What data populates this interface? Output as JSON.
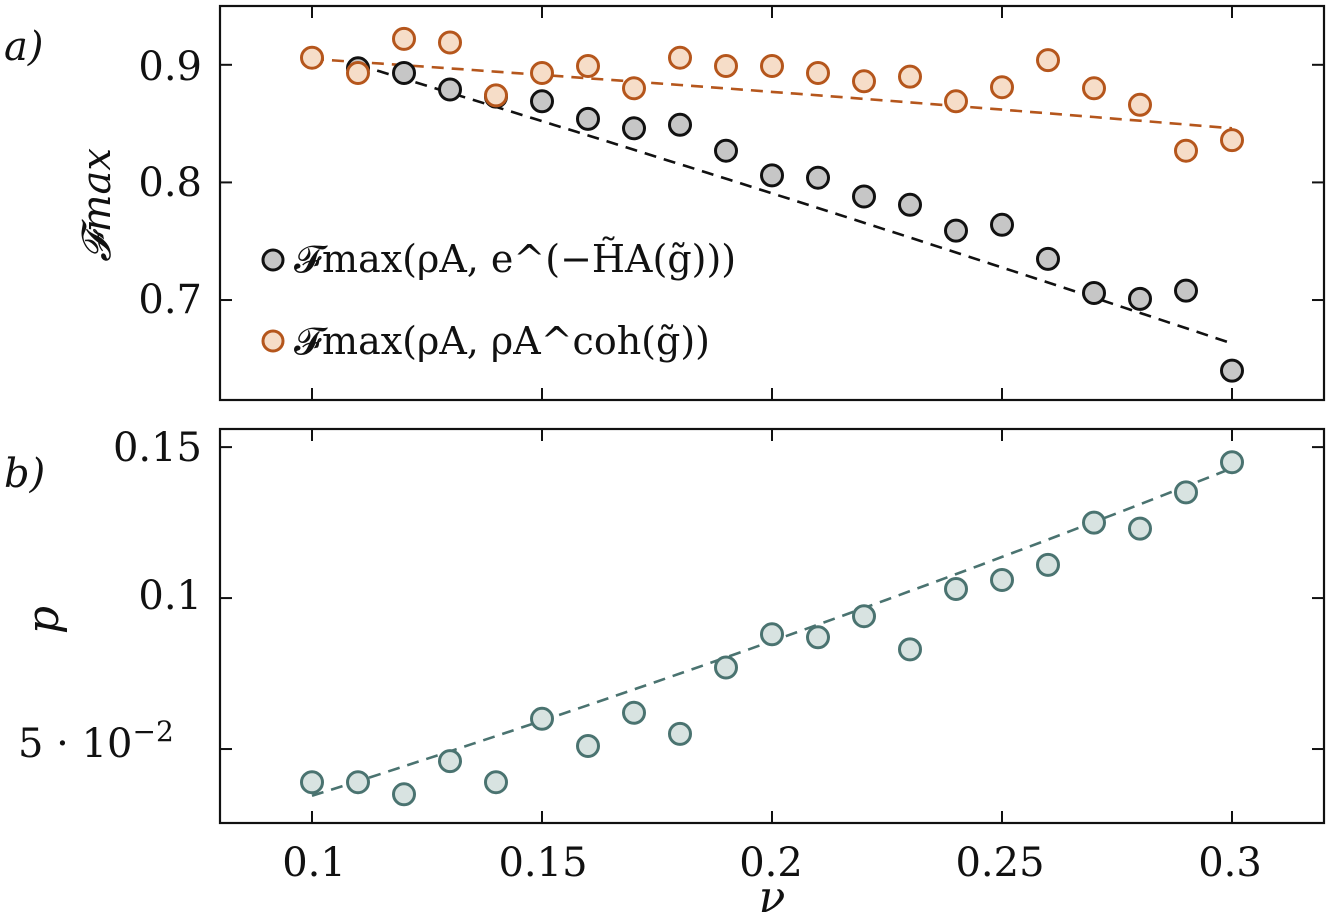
{
  "chart_data": [
    {
      "panel_label": "a)",
      "type": "scatter",
      "ylabel": "𝓕max",
      "ylim": [
        0.615,
        0.95
      ],
      "xlim": [
        0.08,
        0.32
      ],
      "yticks": [
        0.7,
        0.8,
        0.9
      ],
      "ytick_labels": [
        "0.7",
        "0.8",
        "0.9"
      ],
      "legend_position": "lower-left",
      "series": [
        {
          "name": "𝓕max(ρA, e^(−H̃A(g̃)))",
          "marker_fill": "#c6c6c6",
          "marker_edge": "#111111",
          "line_color": "#111111",
          "x": [
            0.11,
            0.12,
            0.13,
            0.14,
            0.15,
            0.16,
            0.17,
            0.18,
            0.19,
            0.2,
            0.21,
            0.22,
            0.23,
            0.24,
            0.25,
            0.26,
            0.27,
            0.28,
            0.29,
            0.3
          ],
          "values": [
            0.897,
            0.893,
            0.879,
            0.873,
            0.869,
            0.854,
            0.846,
            0.849,
            0.827,
            0.806,
            0.804,
            0.788,
            0.781,
            0.759,
            0.764,
            0.735,
            0.706,
            0.701,
            0.708,
            0.64
          ],
          "fit_x": [
            0.11,
            0.3
          ],
          "fit_y": [
            0.9,
            0.663
          ]
        },
        {
          "name": "𝓕max(ρA, ρA^coh(g̃))",
          "marker_fill": "#f6ddc8",
          "marker_edge": "#b5561c",
          "line_color": "#b5561c",
          "x": [
            0.1,
            0.11,
            0.12,
            0.13,
            0.14,
            0.15,
            0.16,
            0.17,
            0.18,
            0.19,
            0.2,
            0.21,
            0.22,
            0.23,
            0.24,
            0.25,
            0.26,
            0.27,
            0.28,
            0.29,
            0.3
          ],
          "values": [
            0.906,
            0.893,
            0.922,
            0.919,
            0.874,
            0.893,
            0.899,
            0.88,
            0.906,
            0.899,
            0.899,
            0.893,
            0.886,
            0.89,
            0.869,
            0.881,
            0.904,
            0.88,
            0.866,
            0.827,
            0.836
          ],
          "fit_x": [
            0.1,
            0.3
          ],
          "fit_y": [
            0.905,
            0.846
          ]
        }
      ]
    },
    {
      "panel_label": "b)",
      "type": "scatter",
      "xlabel": "ν",
      "ylabel": "p",
      "xlim": [
        0.08,
        0.32
      ],
      "ylim": [
        0.0255,
        0.156
      ],
      "xticks": [
        0.1,
        0.15,
        0.2,
        0.25,
        0.3
      ],
      "xtick_labels": [
        "0.1",
        "0.15",
        "0.2",
        "0.25",
        "0.3"
      ],
      "yticks": [
        0.05,
        0.1,
        0.15
      ],
      "ytick_labels": [
        "5 · 10",
        "0.1",
        "0.15"
      ],
      "ytick_exponent": "−2",
      "series": [
        {
          "name": "p",
          "marker_fill": "#d8e3e1",
          "marker_edge": "#4a7370",
          "line_color": "#4a7370",
          "x": [
            0.1,
            0.11,
            0.12,
            0.13,
            0.14,
            0.15,
            0.16,
            0.17,
            0.18,
            0.19,
            0.2,
            0.21,
            0.22,
            0.23,
            0.24,
            0.25,
            0.26,
            0.27,
            0.28,
            0.29,
            0.3
          ],
          "values": [
            0.039,
            0.039,
            0.035,
            0.046,
            0.039,
            0.06,
            0.051,
            0.062,
            0.055,
            0.077,
            0.088,
            0.087,
            0.094,
            0.083,
            0.103,
            0.106,
            0.111,
            0.125,
            0.123,
            0.135,
            0.145
          ],
          "fit_x": [
            0.1,
            0.3
          ],
          "fit_y": [
            0.0345,
            0.143
          ]
        }
      ]
    }
  ]
}
